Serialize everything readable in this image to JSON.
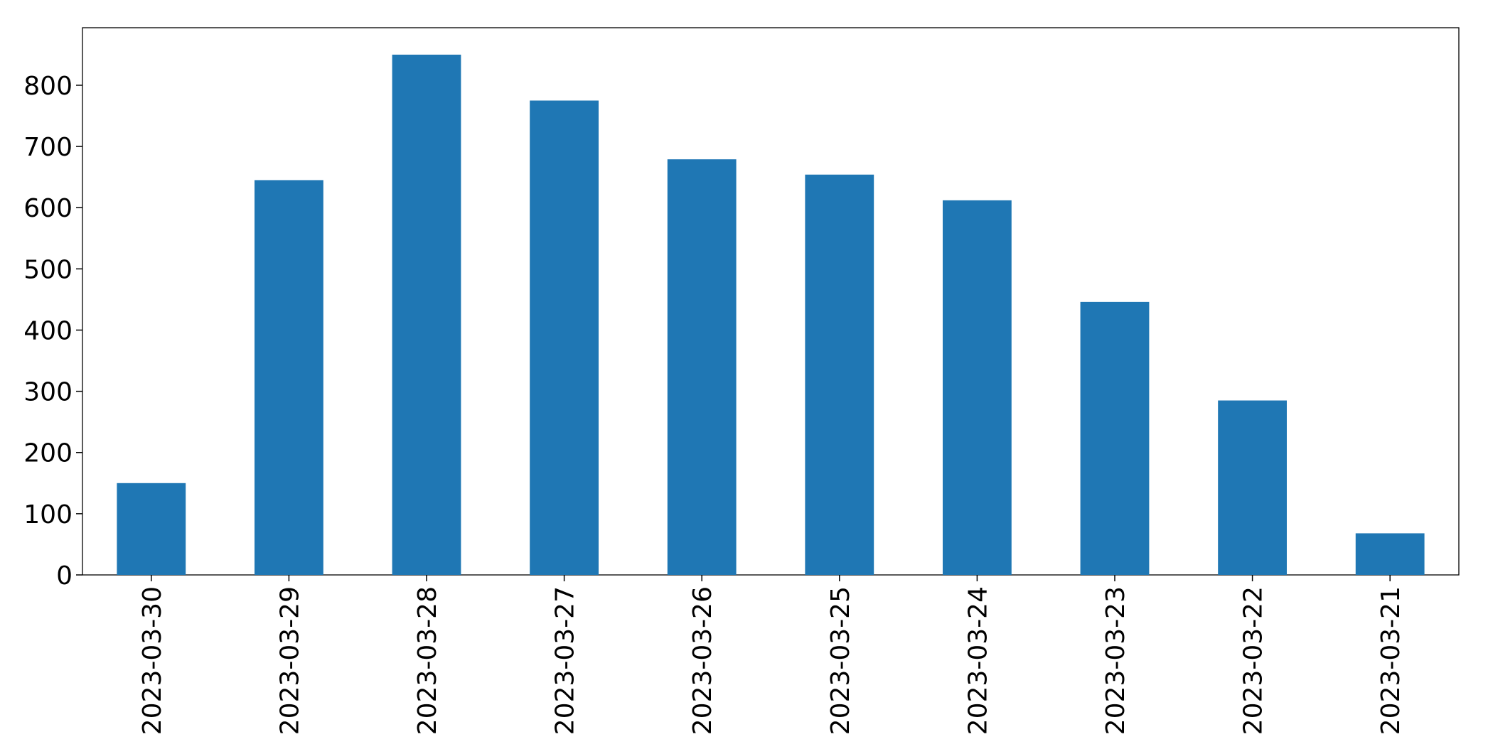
{
  "chart_data": {
    "type": "bar",
    "categories": [
      "2023-03-30",
      "2023-03-29",
      "2023-03-28",
      "2023-03-27",
      "2023-03-26",
      "2023-03-25",
      "2023-03-24",
      "2023-03-23",
      "2023-03-22",
      "2023-03-21"
    ],
    "values": [
      150,
      645,
      850,
      775,
      679,
      654,
      612,
      446,
      285,
      68
    ],
    "color": "#1f77b4",
    "ylim": [
      0,
      894
    ],
    "yticks": [
      0,
      100,
      200,
      300,
      400,
      500,
      600,
      700,
      800
    ],
    "grid": false
  }
}
